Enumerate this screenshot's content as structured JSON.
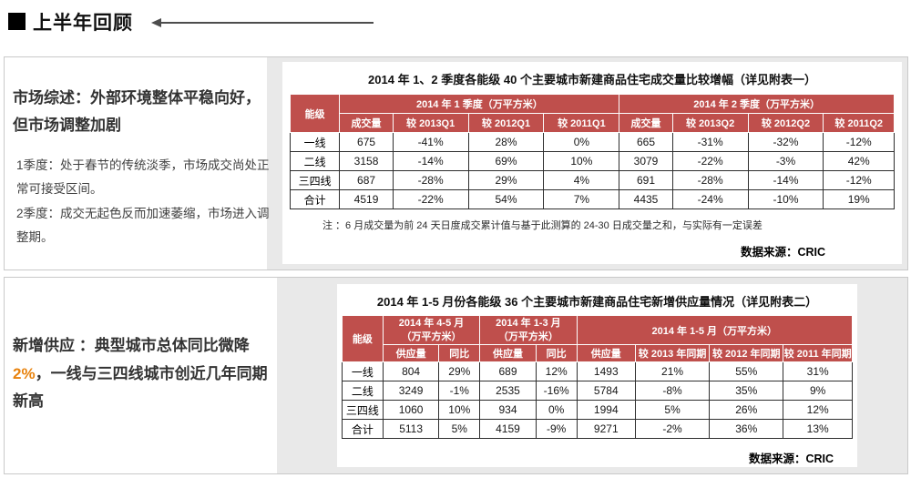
{
  "page": {
    "title": "上半年回顾"
  },
  "colors": {
    "header_red": "#bf4f4c",
    "highlight_orange": "#e8820c",
    "gray_panel": "#e9e9e9"
  },
  "section1": {
    "heading": "市场综述：外部环境整体平稳向好，但市场调整加剧",
    "para1": "1季度：处于春节的传统淡季，市场成交尚处正常可接受区间。",
    "para2": "2季度：成交无起色反而加速萎缩，市场进入调整期。",
    "table": {
      "title": "2014 年 1、2 季度各能级 40 个主要城市新建商品住宅成交量比较增幅（详见附表一）",
      "corner": "能级",
      "group1": "2014 年 1 季度（万平方米）",
      "group2": "2014 年 2 季度（万平方米）",
      "subheaders": [
        "成交量",
        "较 2013Q1",
        "较 2012Q1",
        "较 2011Q1",
        "成交量",
        "较 2013Q2",
        "较 2012Q2",
        "较 2011Q2"
      ],
      "rows": [
        {
          "label": "一线",
          "values": [
            "675",
            "-41%",
            "28%",
            "0%",
            "665",
            "-31%",
            "-32%",
            "-12%"
          ]
        },
        {
          "label": "二线",
          "values": [
            "3158",
            "-14%",
            "69%",
            "10%",
            "3079",
            "-22%",
            "-3%",
            "42%"
          ]
        },
        {
          "label": "三四线",
          "values": [
            "687",
            "-28%",
            "29%",
            "4%",
            "691",
            "-28%",
            "-14%",
            "-12%"
          ]
        },
        {
          "label": "合计",
          "values": [
            "4519",
            "-22%",
            "54%",
            "7%",
            "4435",
            "-24%",
            "-10%",
            "19%"
          ]
        }
      ],
      "note": "注 ：6 月成交量为前 24 天日度成交累计值与基于此测算的 24-30 日成交量之和，与实际有一定误差",
      "source": "数据来源：CRIC"
    }
  },
  "section2": {
    "heading_prefix": "新增供应 ：典型城市总体同比微降 ",
    "heading_highlight": "2%",
    "heading_suffix": "，一线与三四线城市创近几年同期新高",
    "table": {
      "title": "2014 年 1-5 月份各能级 36 个主要城市新建商品住宅新增供应量情况（详见附表二）",
      "corner": "能级",
      "group1_line1": "2014 年 4-5 月",
      "group1_line2": "（万平方米）",
      "group2_line1": "2014 年 1-3 月",
      "group2_line2": "（万平方米）",
      "group3": "2014 年 1-5 月（万平方米）",
      "subheaders": [
        "供应量",
        "同比",
        "供应量",
        "同比",
        "供应量",
        "较 2013 年同期",
        "较 2012 年同期",
        "较 2011 年同期"
      ],
      "rows": [
        {
          "label": "一线",
          "values": [
            "804",
            "29%",
            "689",
            "12%",
            "1493",
            "21%",
            "55%",
            "31%"
          ]
        },
        {
          "label": "二线",
          "values": [
            "3249",
            "-1%",
            "2535",
            "-16%",
            "5784",
            "-8%",
            "35%",
            "9%"
          ]
        },
        {
          "label": "三四线",
          "values": [
            "1060",
            "10%",
            "934",
            "0%",
            "1994",
            "5%",
            "26%",
            "12%"
          ]
        },
        {
          "label": "合计",
          "values": [
            "5113",
            "5%",
            "4159",
            "-9%",
            "9271",
            "-2%",
            "36%",
            "13%"
          ]
        }
      ],
      "source": "数据来源：CRIC"
    }
  }
}
